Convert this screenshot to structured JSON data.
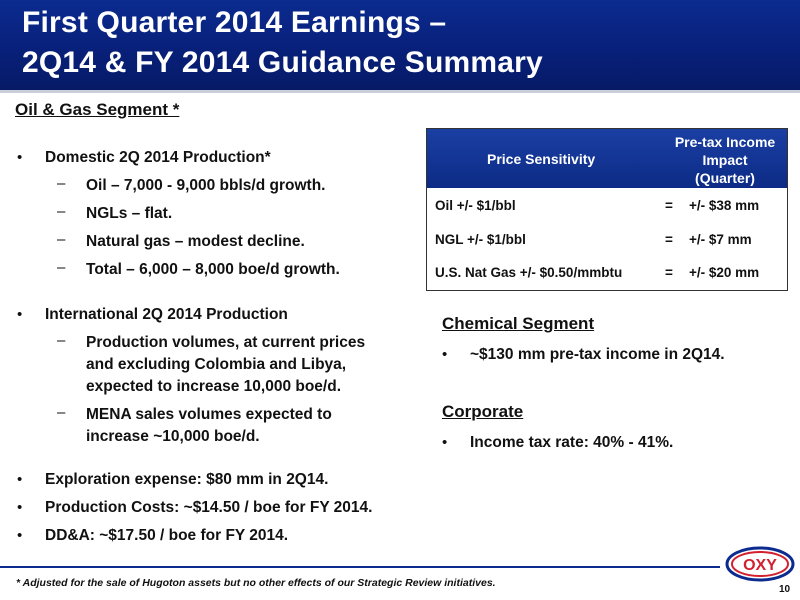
{
  "title": {
    "line1": "First Quarter 2014 Earnings –",
    "line2": "2Q14 & FY 2014 Guidance Summary"
  },
  "oil_gas": {
    "heading": "Oil & Gas Segment *",
    "domestic": {
      "label": "Domestic 2Q 2014 Production*",
      "items": [
        "Oil –  7,000 - 9,000 bbls/d growth.",
        "NGLs – flat.",
        "Natural gas – modest decline.",
        "Total – 6,000 – 8,000 boe/d growth."
      ]
    },
    "international": {
      "label": "International 2Q 2014 Production",
      "item1": [
        "Production volumes, at current prices",
        "and excluding Colombia and Libya,",
        "expected to increase 10,000 boe/d."
      ],
      "item2": [
        "MENA sales volumes expected to",
        "increase ~10,000 boe/d."
      ]
    },
    "other": [
      "Exploration expense: $80 mm in 2Q14.",
      "Production Costs: ~$14.50 / boe for FY 2014.",
      "DD&A: ~$17.50 / boe for FY 2014."
    ]
  },
  "sensitivity": {
    "col1": "Price Sensitivity",
    "col2_lines": [
      "Pre-tax Income",
      "Impact",
      "(Quarter)"
    ],
    "rows": [
      {
        "label": "Oil +/- $1/bbl",
        "eq": "=",
        "value": "+/- $38 mm"
      },
      {
        "label": "NGL +/- $1/bbl",
        "eq": "=",
        "value": "+/- $7 mm"
      },
      {
        "label": "U.S. Nat Gas +/- $0.50/mmbtu",
        "eq": "=",
        "value": "+/- $20 mm"
      }
    ]
  },
  "chemical": {
    "heading": "Chemical Segment",
    "item": "~$130 mm pre-tax income in 2Q14."
  },
  "corporate": {
    "heading": "Corporate",
    "item": "Income tax rate: 40% - 41%."
  },
  "bullet_symbol": "•",
  "dash_symbol": "–",
  "footnote": "* Adjusted for the sale of Hugoton assets but no other effects of our Strategic Review initiatives.",
  "logo_text": "OXY",
  "page_number": "10",
  "colors": {
    "banner": "#0b2b8f",
    "logo_red": "#d2202f"
  }
}
